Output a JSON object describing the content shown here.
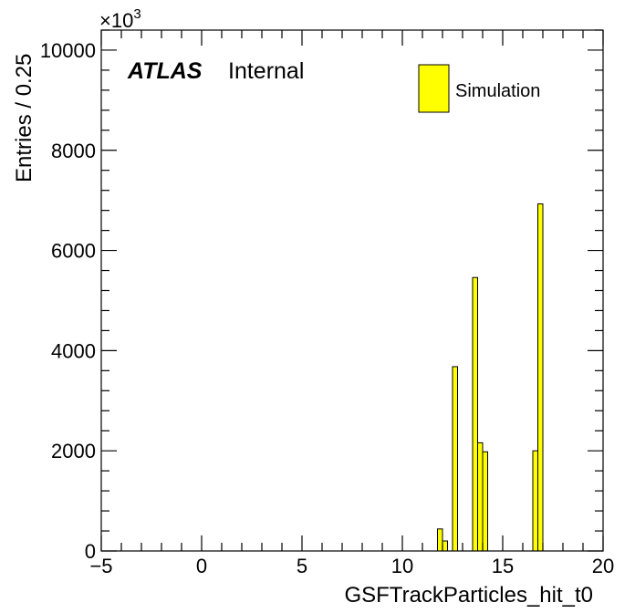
{
  "chart_data": {
    "type": "bar",
    "xlabel": "GSFTrackParticles_hit_t0",
    "ylabel": "Entries / 0.25",
    "y_multiplier_base": "×10",
    "y_multiplier_exp": "3",
    "xlim": [
      -5,
      20
    ],
    "ylim": [
      0,
      10400
    ],
    "x_ticks": [
      -5,
      0,
      5,
      10,
      15,
      20
    ],
    "x_tick_labels": [
      "−5",
      "0",
      "5",
      "10",
      "15",
      "20"
    ],
    "y_ticks": [
      0,
      2000,
      4000,
      6000,
      8000,
      10000
    ],
    "y_tick_labels": [
      "0",
      "2000",
      "4000",
      "6000",
      "8000",
      "10000"
    ],
    "bin_width": 0.25,
    "bins": [
      {
        "low": 11.75,
        "value": 440
      },
      {
        "low": 12.0,
        "value": 200
      },
      {
        "low": 12.5,
        "value": 3680
      },
      {
        "low": 13.5,
        "value": 5460
      },
      {
        "low": 13.75,
        "value": 2160
      },
      {
        "low": 14.0,
        "value": 1980
      },
      {
        "low": 16.5,
        "value": 2000
      },
      {
        "low": 16.75,
        "value": 6930
      }
    ],
    "fill_color": "#ffff00",
    "line_color": "#000000",
    "legend": {
      "entries": [
        {
          "name": "Simulation",
          "color": "#ffff00"
        }
      ],
      "placement": "top-right"
    },
    "label": {
      "experiment": "ATLAS",
      "status": "Internal"
    }
  }
}
